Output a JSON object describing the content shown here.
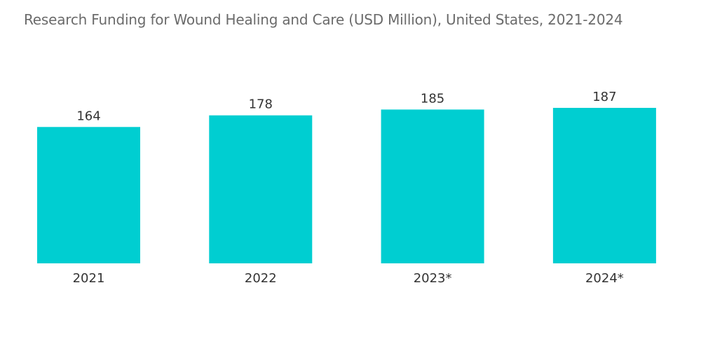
{
  "chart_data": {
    "type": "bar",
    "title": "Research Funding for Wound Healing and Care (USD Million), United States, 2021-2024",
    "categories": [
      "2021",
      "2022",
      "2023*",
      "2024*"
    ],
    "values": [
      164,
      178,
      185,
      187
    ],
    "xlabel": "",
    "ylabel": "",
    "ylim": [
      0,
      187
    ],
    "grid": false,
    "legend": "none",
    "bar_color": "#00CED1"
  }
}
